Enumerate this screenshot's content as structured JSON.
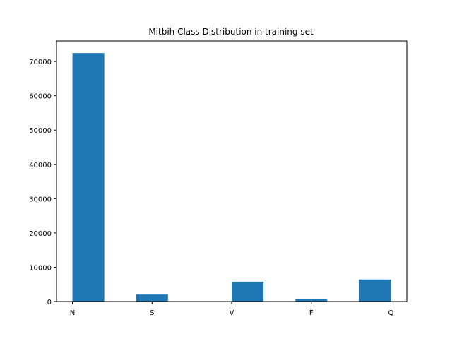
{
  "chart_data": {
    "type": "bar",
    "title": "Mitbih Class Distribution in training set",
    "xlabel": "",
    "ylabel": "",
    "categories": [
      "N",
      "S",
      "V",
      "F",
      "Q"
    ],
    "x_ticks": [
      0,
      1,
      2,
      3,
      4
    ],
    "bars": [
      {
        "x_start": 0.0,
        "x_end": 0.4,
        "value": 72471
      },
      {
        "x_start": 0.8,
        "x_end": 1.2,
        "value": 2223
      },
      {
        "x_start": 2.0,
        "x_end": 2.4,
        "value": 5788
      },
      {
        "x_start": 2.8,
        "x_end": 3.2,
        "value": 641
      },
      {
        "x_start": 3.6,
        "x_end": 4.0,
        "value": 6431
      }
    ],
    "xlim": [
      -0.2,
      4.2
    ],
    "ylim": [
      0,
      76000
    ],
    "y_ticks": [
      0,
      10000,
      20000,
      30000,
      40000,
      50000,
      60000,
      70000
    ],
    "grid": false,
    "bar_color": "#1f77b4"
  }
}
